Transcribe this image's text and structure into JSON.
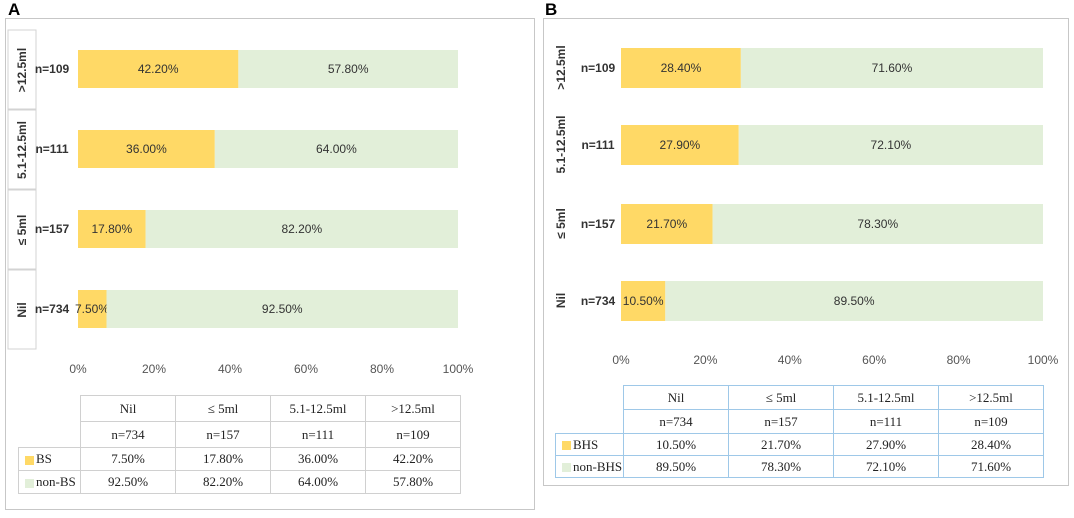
{
  "colors": {
    "bs": "#ffd966",
    "non_bs": "#e2efd9"
  },
  "chart_data": [
    {
      "panel": "A",
      "type": "bar",
      "orientation": "horizontal",
      "stacked": true,
      "percent": true,
      "categories": [
        ">12.5ml",
        "5.1-12.5ml",
        "≤ 5ml",
        "Nil"
      ],
      "n_labels": [
        "n=109",
        "n=111",
        "n=157",
        "n=734"
      ],
      "series": [
        {
          "name": "BS",
          "values": [
            42.2,
            36.0,
            17.8,
            7.5
          ],
          "labels": [
            "42.20%",
            "36.00%",
            "17.80%",
            "7.50%"
          ]
        },
        {
          "name": "non-BS",
          "values": [
            57.8,
            64.0,
            82.2,
            92.5
          ],
          "labels": [
            "57.80%",
            "64.00%",
            "82.20%",
            "92.50%"
          ]
        }
      ],
      "xlim": [
        0,
        100
      ],
      "xticks": [
        "0%",
        "20%",
        "40%",
        "60%",
        "80%",
        "100%"
      ],
      "table": {
        "header": [
          "Nil",
          "≤ 5ml",
          "5.1-12.5ml",
          ">12.5ml"
        ],
        "n_row": [
          "n=734",
          "n=157",
          "n=111",
          "n=109"
        ],
        "rows": [
          {
            "label": "BS",
            "values": [
              "7.50%",
              "17.80%",
              "36.00%",
              "42.20%"
            ]
          },
          {
            "label": "non-BS",
            "values": [
              "92.50%",
              "82.20%",
              "64.00%",
              "57.80%"
            ]
          }
        ]
      }
    },
    {
      "panel": "B",
      "type": "bar",
      "orientation": "horizontal",
      "stacked": true,
      "percent": true,
      "categories": [
        ">12.5ml",
        "5.1-12.5ml",
        "≤ 5ml",
        "Nil"
      ],
      "n_labels": [
        "n=109",
        "n=111",
        "n=157",
        "n=734"
      ],
      "series": [
        {
          "name": "BHS",
          "values": [
            28.4,
            27.9,
            21.7,
            10.5
          ],
          "labels": [
            "28.40%",
            "27.90%",
            "21.70%",
            "10.50%"
          ]
        },
        {
          "name": "non-BHS",
          "values": [
            71.6,
            72.1,
            78.3,
            89.5
          ],
          "labels": [
            "71.60%",
            "72.10%",
            "78.30%",
            "89.50%"
          ]
        }
      ],
      "xlim": [
        0,
        100
      ],
      "xticks": [
        "0%",
        "20%",
        "40%",
        "60%",
        "80%",
        "100%"
      ],
      "table": {
        "header": [
          "Nil",
          "≤ 5ml",
          "5.1-12.5ml",
          ">12.5ml"
        ],
        "n_row": [
          "n=734",
          "n=157",
          "n=111",
          "n=109"
        ],
        "rows": [
          {
            "label": "BHS",
            "values": [
              "10.50%",
              "21.70%",
              "27.90%",
              "28.40%"
            ]
          },
          {
            "label": "non-BHS",
            "values": [
              "89.50%",
              "78.30%",
              "72.10%",
              "71.60%"
            ]
          }
        ]
      }
    }
  ]
}
